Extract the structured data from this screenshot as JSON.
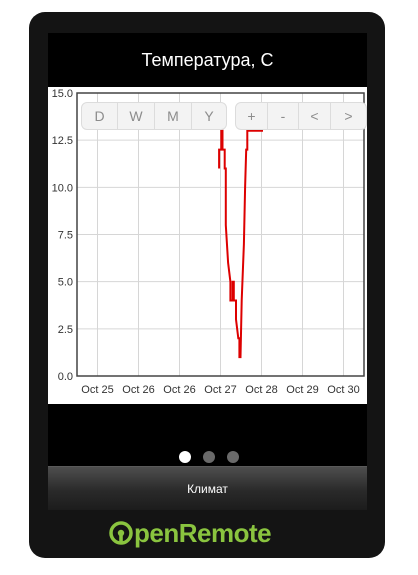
{
  "header": {
    "title": "Температура, C"
  },
  "range_buttons": [
    {
      "label": "D"
    },
    {
      "label": "W"
    },
    {
      "label": "M"
    },
    {
      "label": "Y"
    }
  ],
  "nav_buttons": [
    {
      "label": "+"
    },
    {
      "label": "-"
    },
    {
      "label": "<"
    },
    {
      "label": ">"
    }
  ],
  "chart_data": {
    "type": "line",
    "ylim": [
      0,
      15
    ],
    "y_ticks": [
      "0.0",
      "2.5",
      "5.0",
      "7.5",
      "10.0",
      "12.5",
      "15.0"
    ],
    "x_ticks": [
      "Oct 25",
      "Oct 26",
      "Oct 26",
      "Oct 27",
      "Oct 28",
      "Oct 29",
      "Oct 30"
    ],
    "grid": true,
    "series": [
      {
        "color": "#dd0000",
        "points": [
          [
            0.495,
            11.0
          ],
          [
            0.495,
            12.0
          ],
          [
            0.5029,
            12.0
          ],
          [
            0.5029,
            13.0
          ],
          [
            0.5068,
            13.0
          ],
          [
            0.5068,
            12.0
          ],
          [
            0.5147,
            12.0
          ],
          [
            0.5147,
            11.0
          ],
          [
            0.5186,
            11.0
          ],
          [
            0.5186,
            8.0
          ],
          [
            0.5265,
            6.0
          ],
          [
            0.5344,
            5.0
          ],
          [
            0.5344,
            4.0
          ],
          [
            0.5422,
            4.0
          ],
          [
            0.5422,
            5.0
          ],
          [
            0.5462,
            5.0
          ],
          [
            0.5462,
            4.0
          ],
          [
            0.5541,
            4.0
          ],
          [
            0.5541,
            3.0
          ],
          [
            0.562,
            2.0
          ],
          [
            0.5659,
            2.0
          ],
          [
            0.5659,
            1.0
          ],
          [
            0.5698,
            1.0
          ],
          [
            0.5738,
            4.0
          ],
          [
            0.5816,
            7.0
          ],
          [
            0.5856,
            10.0
          ],
          [
            0.5895,
            12.0
          ],
          [
            0.5935,
            12.0
          ],
          [
            0.5935,
            13.0
          ],
          [
            0.6447,
            13.0
          ],
          [
            0.6447,
            14.0
          ],
          [
            0.6526,
            14.0
          ]
        ]
      }
    ]
  },
  "pager": {
    "count": 3,
    "active": 0
  },
  "tabbar": {
    "label": "Климат"
  },
  "footer": {
    "logo_text_a": "pen",
    "logo_text_b": "Remote"
  },
  "colors": {
    "screen_bg": "#000000",
    "device_bg": "#141414",
    "line": "#dd0000",
    "logo": "#8ac43f"
  }
}
